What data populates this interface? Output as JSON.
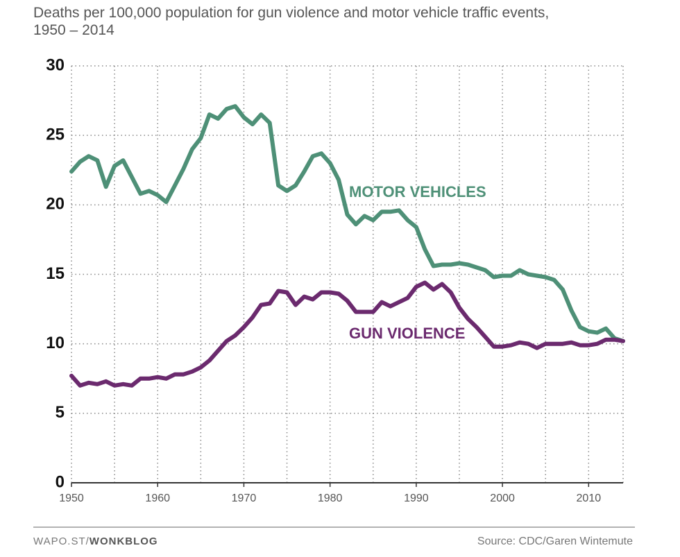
{
  "chart_data": {
    "type": "line",
    "title": "Deaths per 100,000 population for gun violence and motor vehicle traffic events, 1950 – 2014",
    "x": [
      1950,
      1951,
      1952,
      1953,
      1954,
      1955,
      1956,
      1957,
      1958,
      1959,
      1960,
      1961,
      1962,
      1963,
      1964,
      1965,
      1966,
      1967,
      1968,
      1969,
      1970,
      1971,
      1972,
      1973,
      1974,
      1975,
      1976,
      1977,
      1978,
      1979,
      1980,
      1981,
      1982,
      1983,
      1984,
      1985,
      1986,
      1987,
      1988,
      1989,
      1990,
      1991,
      1992,
      1993,
      1994,
      1995,
      1996,
      1997,
      1998,
      1999,
      2000,
      2001,
      2002,
      2003,
      2004,
      2005,
      2006,
      2007,
      2008,
      2009,
      2010,
      2011,
      2012,
      2013,
      2014
    ],
    "series": [
      {
        "name": "MOTOR VEHICLES",
        "color": "#4e9077",
        "values": [
          22.4,
          23.1,
          23.5,
          23.2,
          21.3,
          22.8,
          23.2,
          22.0,
          20.8,
          21.0,
          20.7,
          20.2,
          21.4,
          22.6,
          24.0,
          24.8,
          26.5,
          26.2,
          26.9,
          27.1,
          26.3,
          25.8,
          26.5,
          25.9,
          21.4,
          21.0,
          21.4,
          22.4,
          23.5,
          23.7,
          23.0,
          21.8,
          19.3,
          18.6,
          19.2,
          18.9,
          19.5,
          19.5,
          19.6,
          18.9,
          18.4,
          16.8,
          15.6,
          15.7,
          15.7,
          15.8,
          15.7,
          15.5,
          15.3,
          14.8,
          14.9,
          14.9,
          15.3,
          15.0,
          14.9,
          14.8,
          14.6,
          13.9,
          12.4,
          11.2,
          10.9,
          10.8,
          11.1,
          10.4,
          10.2
        ]
      },
      {
        "name": "GUN VIOLENCE",
        "color": "#6b2a6e",
        "values": [
          7.7,
          7.0,
          7.2,
          7.1,
          7.3,
          7.0,
          7.1,
          7.0,
          7.5,
          7.5,
          7.6,
          7.5,
          7.8,
          7.8,
          8.0,
          8.3,
          8.8,
          9.5,
          10.2,
          10.6,
          11.2,
          11.9,
          12.8,
          12.9,
          13.8,
          13.7,
          12.8,
          13.4,
          13.2,
          13.7,
          13.7,
          13.6,
          13.1,
          12.3,
          12.3,
          12.3,
          13.0,
          12.7,
          13.0,
          13.3,
          14.1,
          14.4,
          13.9,
          14.3,
          13.7,
          12.6,
          11.8,
          11.2,
          10.5,
          9.8,
          9.8,
          9.9,
          10.1,
          10.0,
          9.7,
          10.0,
          10.0,
          10.0,
          10.1,
          9.9,
          9.9,
          10.0,
          10.3,
          10.3,
          10.2
        ]
      }
    ],
    "xlim": [
      1950,
      2014
    ],
    "ylim": [
      0,
      30
    ],
    "xticks": [
      1950,
      1960,
      1970,
      1980,
      1990,
      2000,
      2010
    ],
    "x_minor_ticks": [
      1955,
      1965,
      1975,
      1985,
      1995,
      2005
    ],
    "yticks": [
      0,
      5,
      10,
      15,
      20,
      25,
      30
    ],
    "grid": true,
    "footer": {
      "site": "WAPO.ST/",
      "blog": "WONKBLOG",
      "source": "Source: CDC/Garen Wintemute"
    }
  }
}
